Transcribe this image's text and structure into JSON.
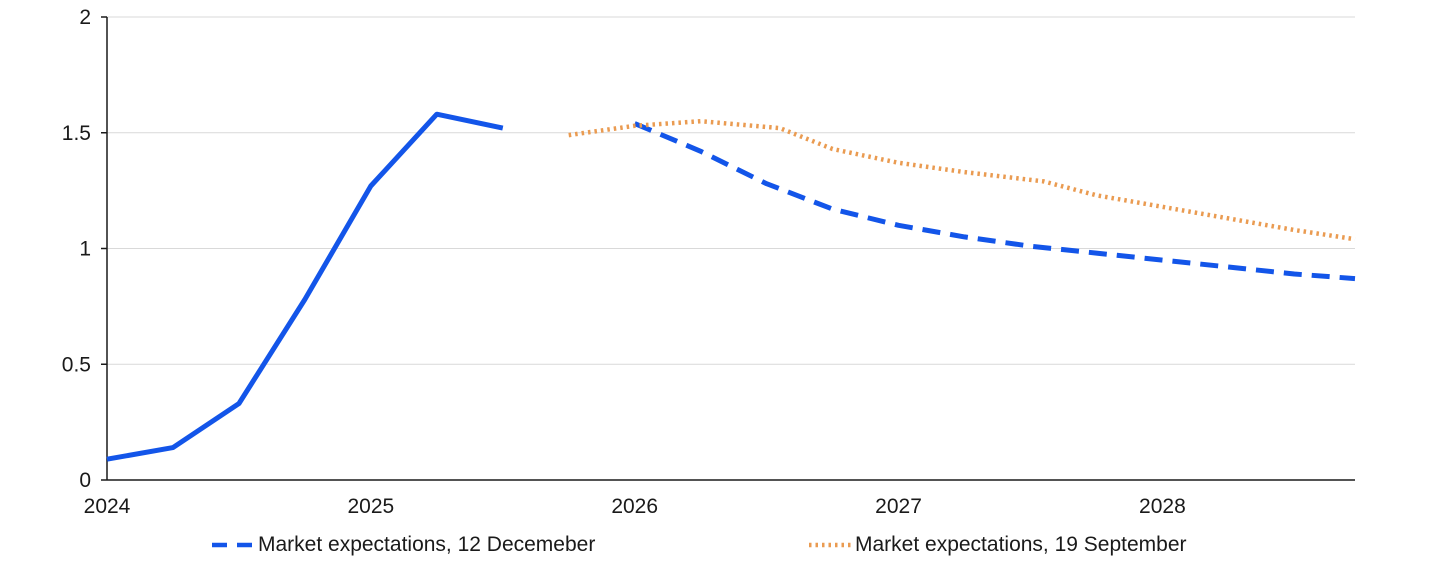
{
  "chart_data": {
    "type": "line",
    "title": "",
    "xlabel": "",
    "ylabel": "",
    "xlim": [
      2024,
      2028.73
    ],
    "ylim": [
      0,
      2
    ],
    "x_ticks": [
      2024,
      2025,
      2026,
      2027,
      2028
    ],
    "y_ticks": [
      0,
      0.5,
      1,
      1.5,
      2
    ],
    "grid": "horizontal",
    "legend_position": "bottom",
    "colors": {
      "axis": "#1a1a1a",
      "grid": "#d9d9d9",
      "text": "#1a1a1a",
      "background": "#ffffff"
    },
    "series": [
      {
        "name": "Market expectations, 12 Decemeber",
        "color": "#1355e9",
        "line_width": 5,
        "segments": [
          {
            "style": "solid",
            "points": [
              [
                2024,
                0.09
              ],
              [
                2024.25,
                0.14
              ],
              [
                2024.5,
                0.33
              ],
              [
                2024.75,
                0.78
              ],
              [
                2025,
                1.27
              ],
              [
                2025.25,
                1.58
              ],
              [
                2025.5,
                1.52
              ]
            ]
          },
          {
            "style": "dashed",
            "points": [
              [
                2026,
                1.54
              ],
              [
                2026.25,
                1.42
              ],
              [
                2026.5,
                1.28
              ],
              [
                2026.75,
                1.17
              ],
              [
                2027,
                1.1
              ],
              [
                2027.25,
                1.05
              ],
              [
                2027.5,
                1.01
              ],
              [
                2027.75,
                0.98
              ],
              [
                2028,
                0.95
              ],
              [
                2028.25,
                0.92
              ],
              [
                2028.5,
                0.89
              ],
              [
                2028.73,
                0.87
              ]
            ]
          }
        ]
      },
      {
        "name": "Market expectations, 19 September",
        "color": "#ea9b51",
        "line_width": 4.5,
        "segments": [
          {
            "style": "dotted",
            "points": [
              [
                2025.75,
                1.49
              ],
              [
                2026,
                1.53
              ],
              [
                2026.25,
                1.55
              ],
              [
                2026.55,
                1.52
              ],
              [
                2026.75,
                1.43
              ],
              [
                2027,
                1.37
              ],
              [
                2027.25,
                1.33
              ],
              [
                2027.55,
                1.29
              ],
              [
                2027.75,
                1.23
              ],
              [
                2028,
                1.18
              ],
              [
                2028.25,
                1.13
              ],
              [
                2028.5,
                1.08
              ],
              [
                2028.73,
                1.04
              ]
            ]
          }
        ]
      }
    ]
  }
}
